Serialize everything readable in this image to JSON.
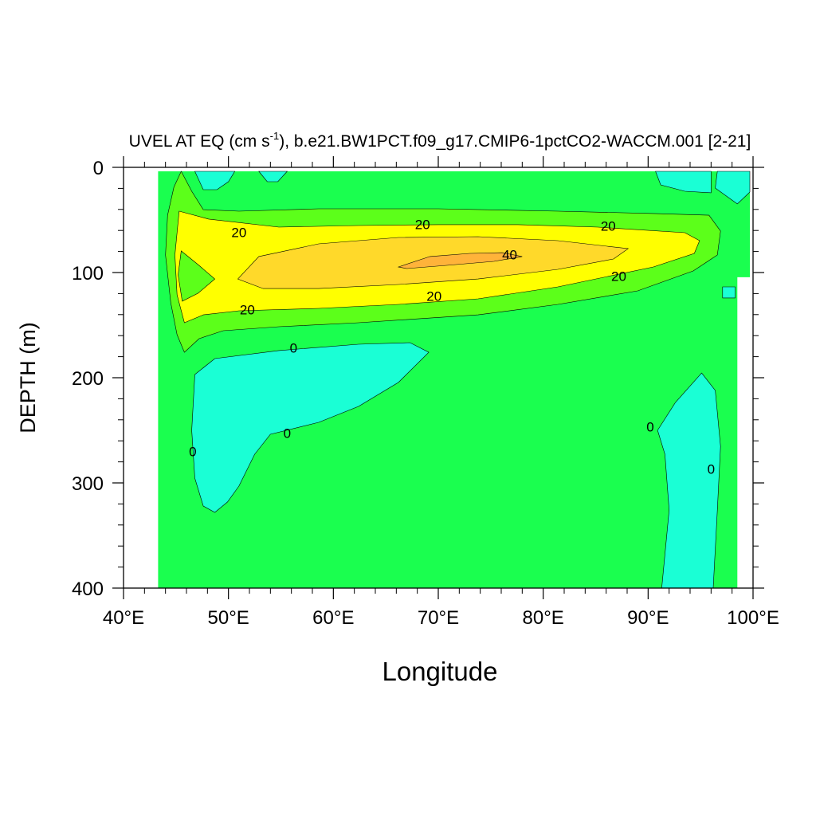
{
  "chart_data": {
    "type": "contour",
    "title_parts": [
      "UVEL AT EQ (cm s",
      "-1",
      "), b.e21.BW1PCT.f09_g17.CMIP6-1pctCO2-WACCM.001 [2-21]"
    ],
    "x_label": "Longitude",
    "y_label": "DEPTH (m)",
    "xlim": [
      40,
      100
    ],
    "ylim": [
      400,
      0
    ],
    "xticks": [
      {
        "value": 40,
        "label": "40°E"
      },
      {
        "value": 50,
        "label": "50°E"
      },
      {
        "value": 60,
        "label": "60°E"
      },
      {
        "value": 70,
        "label": "70°E"
      },
      {
        "value": 80,
        "label": "80°E"
      },
      {
        "value": 90,
        "label": "90°E"
      },
      {
        "value": 100,
        "label": "100°E"
      }
    ],
    "xminorticks": [
      42,
      44,
      46,
      48,
      52,
      54,
      56,
      58,
      62,
      64,
      66,
      68,
      72,
      74,
      76,
      78,
      82,
      84,
      86,
      88,
      92,
      94,
      96,
      98
    ],
    "yticks": [
      0,
      100,
      200,
      300,
      400
    ],
    "yminorticks": [
      20,
      40,
      60,
      80,
      120,
      140,
      160,
      180,
      220,
      240,
      260,
      280,
      320,
      340,
      360,
      380
    ],
    "fills": [
      {
        "level": 0,
        "color": "#1aff4f",
        "outline": false,
        "points": [
          [
            43.3,
            3.8
          ],
          [
            99.7,
            3.8
          ],
          [
            99.7,
            104.5
          ],
          [
            98.5,
            104.5
          ],
          [
            98.5,
            400
          ],
          [
            43.3,
            400
          ]
        ]
      },
      {
        "level": 10,
        "color": "#5cff1a",
        "outline": true,
        "points": [
          [
            45.5,
            3.8
          ],
          [
            46.5,
            22.7
          ],
          [
            47.6,
            40.2
          ],
          [
            51.0,
            41.7
          ],
          [
            58.6,
            39.4
          ],
          [
            70.0,
            39.4
          ],
          [
            81.4,
            41.7
          ],
          [
            90.5,
            43.9
          ],
          [
            95.8,
            45.5
          ],
          [
            96.9,
            60.6
          ],
          [
            96.6,
            83.3
          ],
          [
            94.3,
            98.5
          ],
          [
            89.0,
            117.4
          ],
          [
            81.4,
            130.3
          ],
          [
            73.8,
            140.2
          ],
          [
            62.4,
            147.7
          ],
          [
            54.8,
            151.5
          ],
          [
            49.5,
            155.3
          ],
          [
            47.2,
            162.9
          ],
          [
            45.8,
            175.8
          ],
          [
            45.1,
            159.1
          ],
          [
            44.5,
            128.8
          ],
          [
            44.0,
            83.3
          ],
          [
            44.2,
            45.5
          ],
          [
            44.8,
            18.9
          ]
        ]
      },
      {
        "level": 20,
        "color": "#ffff00",
        "outline": true,
        "points": [
          [
            45.3,
            41.7
          ],
          [
            48.1,
            49.2
          ],
          [
            54.8,
            56.8
          ],
          [
            62.4,
            55.3
          ],
          [
            70.0,
            54.5
          ],
          [
            77.6,
            54.5
          ],
          [
            85.2,
            56.8
          ],
          [
            93.5,
            62.1
          ],
          [
            94.9,
            69.7
          ],
          [
            94.4,
            81.8
          ],
          [
            90.5,
            94.7
          ],
          [
            81.4,
            113.6
          ],
          [
            73.8,
            125.0
          ],
          [
            66.2,
            130.3
          ],
          [
            58.6,
            134.1
          ],
          [
            51.0,
            136.4
          ],
          [
            47.6,
            140.2
          ],
          [
            45.8,
            147.7
          ],
          [
            45.1,
            121.2
          ],
          [
            44.9,
            83.3
          ]
        ]
      },
      {
        "level": 10,
        "color": "#5cff1a",
        "outline": true,
        "points": [
          [
            45.5,
            79.5
          ],
          [
            47.1,
            92.4
          ],
          [
            48.7,
            106.1
          ],
          [
            47.1,
            119.7
          ],
          [
            45.6,
            127.3
          ],
          [
            45.2,
            102.3
          ]
        ]
      },
      {
        "level": 30,
        "color": "#ffd92a",
        "outline": true,
        "points": [
          [
            50.9,
            106.1
          ],
          [
            52.9,
            84.8
          ],
          [
            58.6,
            72.7
          ],
          [
            66.2,
            66.7
          ],
          [
            73.8,
            65.9
          ],
          [
            81.4,
            69.7
          ],
          [
            88.1,
            77.3
          ],
          [
            86.7,
            87.1
          ],
          [
            81.4,
            97.0
          ],
          [
            73.8,
            106.1
          ],
          [
            66.2,
            111.4
          ],
          [
            58.6,
            115.2
          ],
          [
            53.3,
            115.2
          ]
        ]
      },
      {
        "level": 40,
        "color": "#ffb33a",
        "outline": true,
        "points": [
          [
            66.2,
            94.7
          ],
          [
            69.2,
            84.8
          ],
          [
            73.0,
            81.8
          ],
          [
            76.1,
            81.1
          ],
          [
            78.0,
            84.8
          ],
          [
            75.3,
            89.4
          ],
          [
            70.8,
            93.2
          ],
          [
            67.0,
            96.2
          ]
        ]
      },
      {
        "level": -10,
        "color": "#1affd5",
        "outline": true,
        "points": [
          [
            46.8,
            197.0
          ],
          [
            48.7,
            181.8
          ],
          [
            54.8,
            174.2
          ],
          [
            62.4,
            168.2
          ],
          [
            67.3,
            166.7
          ],
          [
            69.1,
            175.8
          ],
          [
            66.2,
            204.5
          ],
          [
            62.4,
            227.3
          ],
          [
            58.6,
            242.4
          ],
          [
            54.0,
            253.8
          ],
          [
            52.5,
            272.7
          ],
          [
            51.0,
            303.0
          ],
          [
            49.9,
            318.2
          ],
          [
            48.7,
            328.0
          ],
          [
            47.6,
            322.0
          ],
          [
            46.8,
            295.5
          ],
          [
            46.5,
            250.0
          ]
        ]
      },
      {
        "level": -10,
        "color": "#1affd5",
        "outline": true,
        "points": [
          [
            95.1,
            195.5
          ],
          [
            96.4,
            212.1
          ],
          [
            96.9,
            265.2
          ],
          [
            96.6,
            325.8
          ],
          [
            96.2,
            400
          ],
          [
            91.3,
            400
          ],
          [
            92.0,
            325.8
          ],
          [
            91.6,
            272.7
          ],
          [
            90.9,
            250.0
          ],
          [
            92.6,
            223.5
          ]
        ]
      },
      {
        "level": -10,
        "color": "#1affd5",
        "outline": true,
        "points": [
          [
            46.8,
            3.8
          ],
          [
            47.6,
            21.2
          ],
          [
            48.9,
            21.2
          ],
          [
            50.0,
            13.6
          ],
          [
            50.6,
            3.8
          ]
        ]
      },
      {
        "level": -10,
        "color": "#1affd5",
        "outline": true,
        "points": [
          [
            52.9,
            3.8
          ],
          [
            53.7,
            13.6
          ],
          [
            54.7,
            13.6
          ],
          [
            55.6,
            3.8
          ]
        ]
      },
      {
        "level": -10,
        "color": "#1affd5",
        "outline": true,
        "points": [
          [
            90.7,
            3.8
          ],
          [
            91.2,
            16.7
          ],
          [
            93.5,
            22.7
          ],
          [
            96.0,
            24.2
          ],
          [
            96.0,
            3.8
          ]
        ]
      },
      {
        "level": -10,
        "color": "#1affd5",
        "outline": true,
        "points": [
          [
            96.6,
            3.8
          ],
          [
            96.4,
            19.7
          ],
          [
            98.5,
            34.8
          ],
          [
            99.7,
            23.5
          ],
          [
            99.7,
            3.8
          ]
        ]
      },
      {
        "level": -10,
        "color": "#1affd5",
        "outline": true,
        "points": [
          [
            97.1,
            113.6
          ],
          [
            98.3,
            113.6
          ],
          [
            98.3,
            124.2
          ],
          [
            97.1,
            124.2
          ]
        ]
      }
    ],
    "contour_labels": [
      {
        "value": 20,
        "lon": 51.0,
        "depth": 62.9
      },
      {
        "value": 20,
        "lon": 68.5,
        "depth": 55.3
      },
      {
        "value": 20,
        "lon": 86.2,
        "depth": 56.8
      },
      {
        "value": 20,
        "lon": 87.2,
        "depth": 104.5
      },
      {
        "value": 20,
        "lon": 69.6,
        "depth": 123.5
      },
      {
        "value": 20,
        "lon": 51.8,
        "depth": 136.4
      },
      {
        "value": 40,
        "lon": 76.8,
        "depth": 84.1
      },
      {
        "value": 0,
        "lon": 56.2,
        "depth": 172.7
      },
      {
        "value": 0,
        "lon": 55.6,
        "depth": 253.8
      },
      {
        "value": 0,
        "lon": 46.6,
        "depth": 271.2
      },
      {
        "value": 0,
        "lon": 90.2,
        "depth": 247.7
      },
      {
        "value": 0,
        "lon": 96.0,
        "depth": 287.9
      }
    ]
  }
}
